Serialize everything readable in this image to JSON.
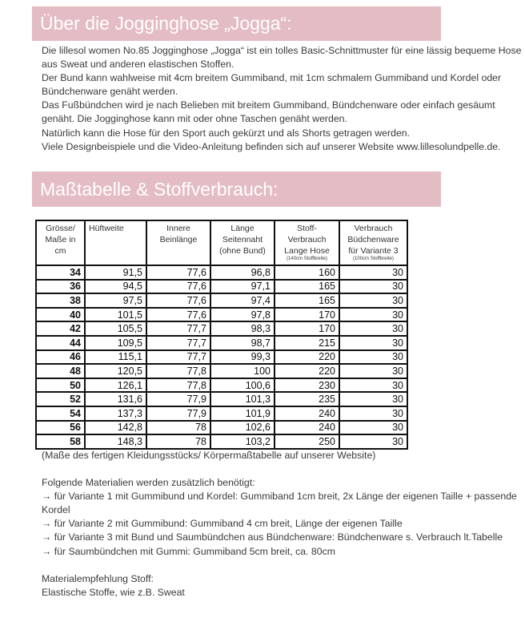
{
  "section1": {
    "title": "Über die Jogginghose „Jogga“:",
    "paragraphs": [
      "Die lillesol women No.85 Jogginghose „Jogga“ ist ein tolles Basic-Schnittmuster für eine lässig bequeme Hose aus Sweat und anderen elastischen Stoffen.",
      "Der Bund kann wahlweise mit 4cm breitem Gummiband, mit 1cm schmalem Gummiband und Kordel oder Bündchenware genäht werden.",
      "Das Fußbündchen wird je nach Belieben mit breitem Gummiband, Bündchenware oder einfach gesäumt genäht. Die Jogginghose kann mit oder ohne Taschen genäht werden.",
      "Natürlich kann die Hose für den Sport auch gekürzt und als Shorts getragen werden.",
      "Viele Designbeispiele und die Video-Anleitung befinden sich auf unserer Website www.lillesolundpelle.de."
    ]
  },
  "section2": {
    "title": "Maßtabelle & Stoffverbrauch:"
  },
  "table": {
    "headers": [
      "Grösse/ Maße in cm",
      "Hüftweite",
      "Innere Beinlänge",
      "Länge Seitennaht (ohne Bund)",
      "Stoff-Verbrauch Lange Hose",
      "Verbrauch Büdchenware für Variante 3"
    ],
    "header_notes": [
      "(140cm Stoffbreite)",
      "(100cm Stoffbreite)"
    ],
    "rows": [
      [
        "34",
        "91,5",
        "77,6",
        "96,8",
        "160",
        "30"
      ],
      [
        "36",
        "94,5",
        "77,6",
        "97,1",
        "165",
        "30"
      ],
      [
        "38",
        "97,5",
        "77,6",
        "97,4",
        "165",
        "30"
      ],
      [
        "40",
        "101,5",
        "77,6",
        "97,8",
        "170",
        "30"
      ],
      [
        "42",
        "105,5",
        "77,7",
        "98,3",
        "170",
        "30"
      ],
      [
        "44",
        "109,5",
        "77,7",
        "98,7",
        "215",
        "30"
      ],
      [
        "46",
        "115,1",
        "77,7",
        "99,3",
        "220",
        "30"
      ],
      [
        "48",
        "120,5",
        "77,8",
        "100",
        "220",
        "30"
      ],
      [
        "50",
        "126,1",
        "77,8",
        "100,6",
        "230",
        "30"
      ],
      [
        "52",
        "131,6",
        "77,9",
        "101,3",
        "235",
        "30"
      ],
      [
        "54",
        "137,3",
        "77,9",
        "101,9",
        "240",
        "30"
      ],
      [
        "56",
        "142,8",
        "78",
        "102,6",
        "240",
        "30"
      ],
      [
        "58",
        "148,3",
        "78",
        "103,2",
        "250",
        "30"
      ]
    ]
  },
  "footer": {
    "note": "(Maße des fertigen Kleidungsstücks/ Körpermaßtabelle auf unserer Website)",
    "materials_heading": "Folgende Materialien werden zusätzlich benötigt:",
    "materials": [
      "→ für Variante 1 mit Gummibund und Kordel: Gummiband 1cm breit, 2x Länge der eigenen Taille + passende Kordel",
      "→ für Variante 2 mit Gummibund: Gummiband 4 cm breit, Länge der eigenen Taille",
      "→ für Variante 3 mit Bund und Saumbündchen aus Bündchenware: Bündchenware s. Verbrauch lt.Tabelle",
      "→ für Saumbündchen mit Gummi: Gummiband 5cm breit, ca. 80cm"
    ],
    "fabric_heading": "Materialempfehlung Stoff:",
    "fabric_text": "Elastische Stoffe, wie z.B. Sweat"
  }
}
